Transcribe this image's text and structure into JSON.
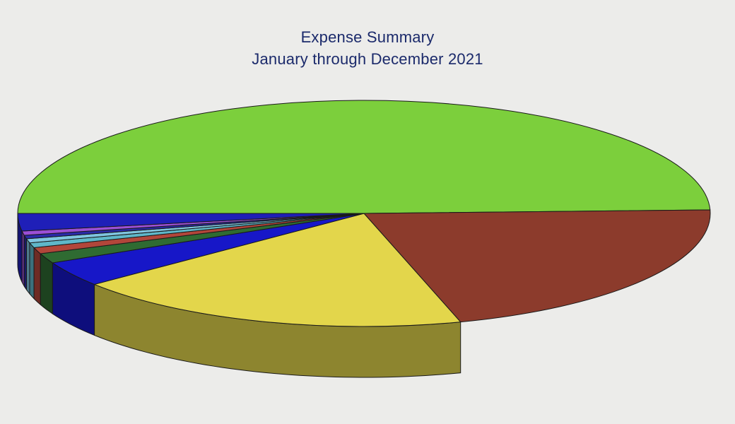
{
  "chart_data": {
    "type": "pie",
    "title": "Expense Summary",
    "subtitle": "January through December 2021",
    "slices": [
      {
        "value": 49.5,
        "color": "#7ccf3c"
      },
      {
        "value": 21.0,
        "color": "#8c3b2c"
      },
      {
        "value": 18.7,
        "color": "#e3d64b"
      },
      {
        "value": 3.6,
        "color": "#1717c8"
      },
      {
        "value": 1.4,
        "color": "#2f6b32"
      },
      {
        "value": 0.9,
        "color": "#b2463a"
      },
      {
        "value": 0.7,
        "color": "#5fb7c9"
      },
      {
        "value": 0.6,
        "color": "#7fc5e0"
      },
      {
        "value": 0.5,
        "color": "#2a2aa8"
      },
      {
        "value": 0.6,
        "color": "#9b4fd6"
      },
      {
        "value": 2.5,
        "color": "#1f1fb8"
      }
    ]
  }
}
